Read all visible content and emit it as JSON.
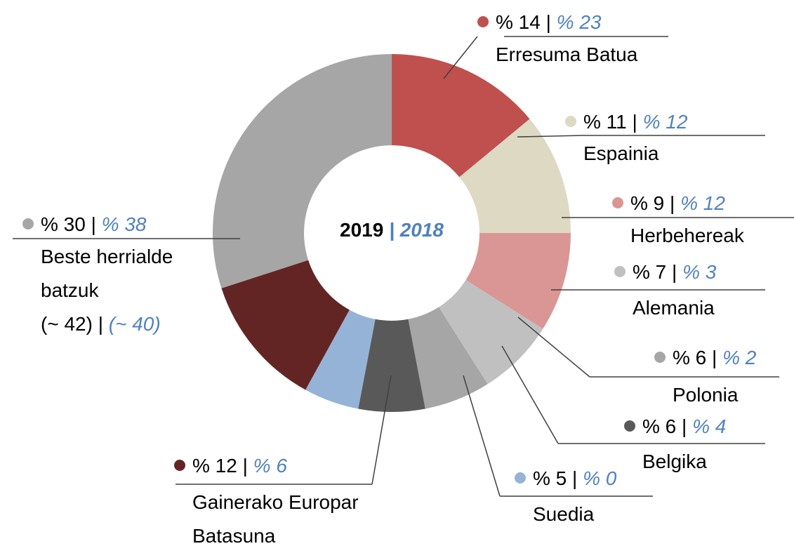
{
  "chart_data": {
    "type": "donut",
    "categories": [
      "Erresuma Batua",
      "Espainia",
      "Herbehereak",
      "Alemania",
      "Polonia",
      "Belgika",
      "Suedia",
      "Gainerako Europar Batasuna",
      "Beste herrialde batzuk"
    ],
    "colors": [
      "#c0504d",
      "#ddd9c3",
      "#d99694",
      "#c0c0c0",
      "#a6a6a6",
      "#595959",
      "#95b3d7",
      "#632523",
      "#a6a6a6"
    ],
    "separator": "|",
    "series": [
      {
        "name": "2019",
        "values": [
          14,
          11,
          9,
          7,
          6,
          6,
          5,
          12,
          30
        ],
        "value_labels": [
          "% 14",
          "% 11",
          "% 9",
          "% 7",
          "% 6",
          "% 6",
          "% 5",
          "% 12",
          "% 30"
        ]
      },
      {
        "name": "2018",
        "values": [
          23,
          12,
          12,
          3,
          2,
          4,
          0,
          6,
          38
        ],
        "value_labels": [
          "% 23",
          "% 12",
          "% 12",
          "% 3",
          "% 2",
          "% 4",
          "% 0",
          "% 6",
          "% 38"
        ]
      }
    ],
    "annotations": [
      {
        "2019": "(~ 42)",
        "2018": "(~ 40)"
      }
    ]
  }
}
